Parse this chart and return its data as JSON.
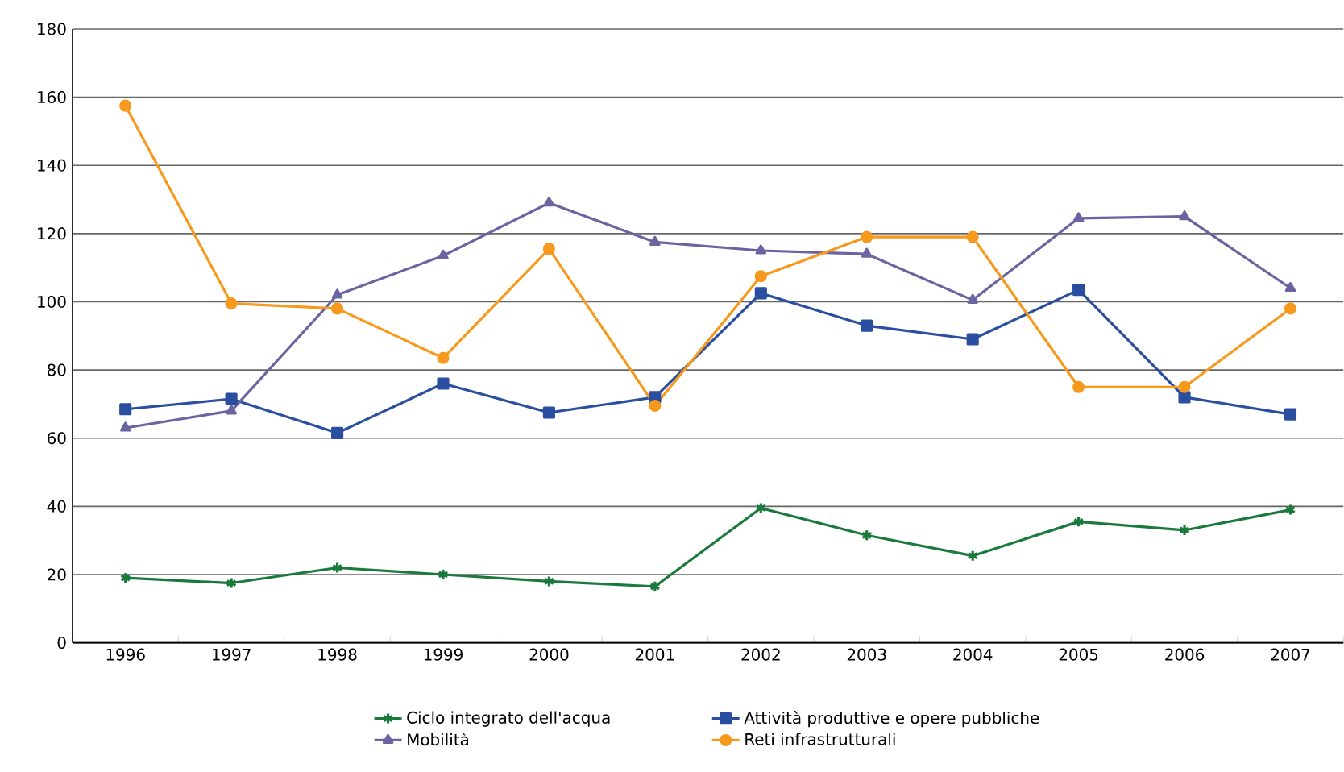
{
  "chart_data": {
    "type": "line",
    "categories": [
      "1996",
      "1997",
      "1998",
      "1999",
      "2000",
      "2001",
      "2002",
      "2003",
      "2004",
      "2005",
      "2006",
      "2007"
    ],
    "ylim": [
      0,
      180
    ],
    "yticks": [
      0,
      20,
      40,
      60,
      80,
      100,
      120,
      140,
      160,
      180
    ],
    "grid": "y",
    "legend": "bottom",
    "series": [
      {
        "name": "Ciclo integrato dell'acqua",
        "color": "#1a7a3c",
        "marker": "cross",
        "values": [
          19,
          17.5,
          22,
          20,
          18,
          16.5,
          39.5,
          31.5,
          25.5,
          35.5,
          33,
          39
        ]
      },
      {
        "name": "Attività produttive e opere pubbliche",
        "color": "#2a4ea0",
        "marker": "square",
        "values": [
          68.5,
          71.5,
          61.5,
          76,
          67.5,
          72,
          102.5,
          93,
          89,
          103.5,
          72,
          67
        ]
      },
      {
        "name": "Mobilità",
        "color": "#6a64a0",
        "marker": "triangle",
        "values": [
          63,
          68,
          102,
          113.5,
          129,
          117.5,
          115,
          114,
          100.5,
          124.5,
          125,
          104
        ]
      },
      {
        "name": "Reti infrastrutturali",
        "color": "#f7991c",
        "marker": "circle",
        "values": [
          157.5,
          99.5,
          98,
          83.5,
          115.5,
          69.5,
          107.5,
          119,
          119,
          75,
          75,
          98
        ]
      }
    ]
  }
}
